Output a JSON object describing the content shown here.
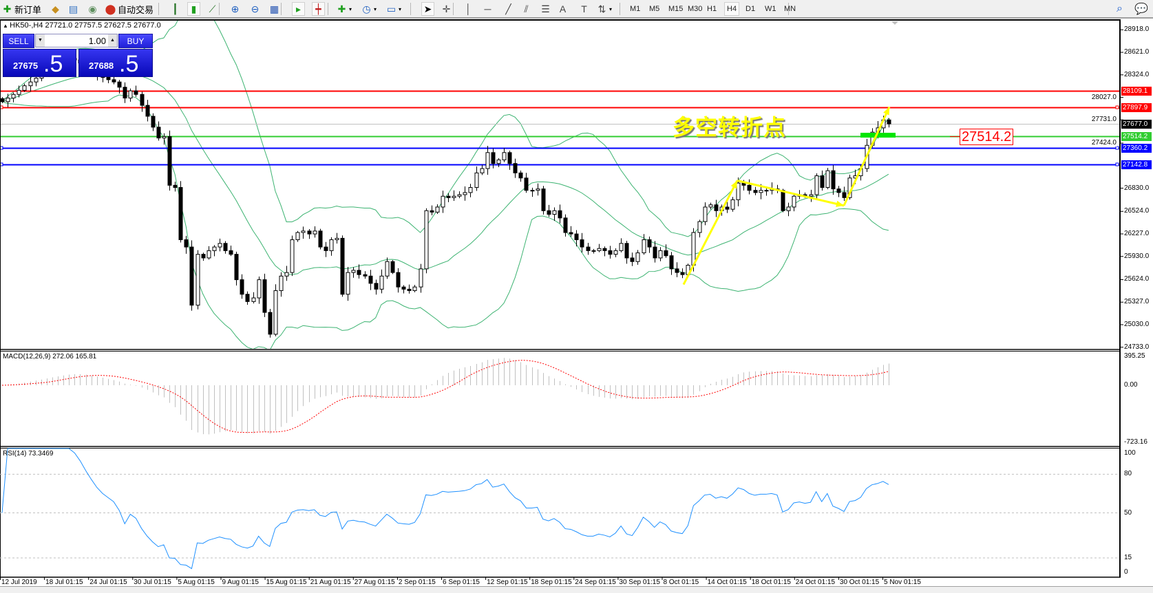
{
  "toolbar": {
    "items": [
      {
        "name": "new-order-button",
        "icon": "new-order-icon",
        "glyph": "✚",
        "label": "新订单",
        "color": "#1a9a1a"
      },
      {
        "name": "market-watch-button",
        "icon": "gold-bars-icon",
        "glyph": "◆",
        "label": "",
        "color": "#c89020"
      },
      {
        "name": "navigator-button",
        "icon": "navigator-icon",
        "glyph": "▤",
        "label": "",
        "color": "#3070c0"
      },
      {
        "name": "signals-button",
        "icon": "signal-icon",
        "glyph": "◉",
        "label": "",
        "color": "#609060"
      },
      {
        "name": "auto-trading-button",
        "icon": "auto-trading-icon",
        "glyph": "⬤",
        "label": "自动交易",
        "color": "#d03020"
      },
      {
        "name": "bar-chart-button",
        "icon": "bar-chart-icon",
        "glyph": "┃",
        "label": "",
        "color": "#207020"
      },
      {
        "name": "candlestick-button",
        "icon": "candlestick-icon",
        "glyph": "▮",
        "label": "",
        "color": "#20a020"
      },
      {
        "name": "line-chart-button",
        "icon": "line-chart-icon",
        "glyph": "⟋",
        "label": "",
        "color": "#207020"
      },
      {
        "name": "zoom-in-button",
        "icon": "zoom-in-icon",
        "glyph": "⊕",
        "label": "",
        "color": "#2060c0"
      },
      {
        "name": "zoom-out-button",
        "icon": "zoom-out-icon",
        "glyph": "⊖",
        "label": "",
        "color": "#2060c0"
      },
      {
        "name": "tile-windows-button",
        "icon": "tile-icon",
        "glyph": "▦",
        "label": "",
        "color": "#2050b0"
      },
      {
        "name": "auto-scroll-button",
        "icon": "auto-scroll-icon",
        "glyph": "▸",
        "label": "",
        "color": "#20a020"
      },
      {
        "name": "chart-shift-button",
        "icon": "chart-shift-icon",
        "glyph": "┿",
        "label": "",
        "color": "#c02020"
      },
      {
        "name": "indicators-button",
        "icon": "indicators-icon",
        "glyph": "✚",
        "label": "▾",
        "color": "#20a020"
      },
      {
        "name": "periods-button",
        "icon": "clock-icon",
        "glyph": "◷",
        "label": "▾",
        "color": "#2060c0"
      },
      {
        "name": "templates-button",
        "icon": "template-icon",
        "glyph": "▭",
        "label": "▾",
        "color": "#2060c0"
      },
      {
        "name": "cursor-button",
        "icon": "cursor-icon",
        "glyph": "➤",
        "label": "",
        "color": "#000"
      },
      {
        "name": "crosshair-button",
        "icon": "crosshair-icon",
        "glyph": "✛",
        "label": "",
        "color": "#444"
      },
      {
        "name": "vertical-line-button",
        "icon": "vertical-line-icon",
        "glyph": "│",
        "label": "",
        "color": "#444"
      },
      {
        "name": "horizontal-line-button",
        "icon": "horizontal-line-icon",
        "glyph": "─",
        "label": "",
        "color": "#444"
      },
      {
        "name": "trendline-button",
        "icon": "trendline-icon",
        "glyph": "╱",
        "label": "",
        "color": "#444"
      },
      {
        "name": "equidistant-channel-button",
        "icon": "channel-icon",
        "glyph": "⫽",
        "label": "",
        "color": "#444"
      },
      {
        "name": "fibonacci-button",
        "icon": "fibonacci-icon",
        "glyph": "☰",
        "label": "",
        "color": "#444"
      },
      {
        "name": "text-button",
        "icon": "text-icon",
        "glyph": "A",
        "label": "",
        "color": "#444"
      },
      {
        "name": "text-label-button",
        "icon": "text-label-icon",
        "glyph": "T",
        "label": "",
        "color": "#444"
      },
      {
        "name": "arrows-button",
        "icon": "arrows-icon",
        "glyph": "⇅",
        "label": "▾",
        "color": "#444"
      }
    ],
    "timeframes": [
      "M1",
      "M5",
      "M15",
      "M30",
      "H1",
      "H4",
      "D1",
      "W1",
      "MN"
    ],
    "active_timeframe": "H4",
    "search_icon": "search-icon",
    "chat_icon": "chat-icon"
  },
  "chart": {
    "symbol_line": "HK50-,H4  27721.0 27757.5 27627.5 27677.0",
    "trade_panel": {
      "sell_label": "SELL",
      "buy_label": "BUY",
      "lot": "1.00",
      "sell_price_main": "27675",
      "sell_price_frac": ".5",
      "buy_price_main": "27688",
      "buy_price_frac": ".5"
    },
    "annotation_text": "多空转折点",
    "annotation_label": "27514.2",
    "macd_title": "MACD(12,26,9) 272.06 165.81",
    "rsi_title": "RSI(14) 73.3469"
  },
  "chart_data": {
    "type": "candlestick",
    "symbol": "HK50-",
    "timeframe": "H4",
    "closes": [
      27970,
      28018,
      28066,
      28120,
      28180,
      28230,
      28280,
      28320,
      28380,
      28420,
      28460,
      28500,
      28540,
      28520,
      28480,
      28430,
      28380,
      28330,
      28290,
      28260,
      28230,
      28161,
      28018,
      28113,
      28066,
      27922,
      27778,
      27634,
      27491,
      27510,
      26868,
      26839,
      26150,
      26054,
      25287,
      25958,
      25910,
      26006,
      26054,
      26102,
      26006,
      25958,
      25623,
      25431,
      25335,
      25383,
      25623,
      25192,
      24904,
      25479,
      25671,
      25718,
      26150,
      26245,
      26265,
      26226,
      26265,
      26054,
      26006,
      26150,
      26169,
      25431,
      25718,
      25747,
      25690,
      25671,
      25575,
      25498,
      25671,
      25862,
      25718,
      25527,
      25498,
      25479,
      25527,
      25766,
      26533,
      26514,
      26581,
      26724,
      26705,
      26724,
      26744,
      26772,
      26839,
      27031,
      27088,
      27299,
      27155,
      27203,
      27299,
      27155,
      27031,
      26964,
      26801,
      26801,
      26820,
      26533,
      26485,
      26533,
      26437,
      26245,
      26226,
      26150,
      26054,
      26006,
      26006,
      26035,
      26006,
      25958,
      26006,
      26102,
      25910,
      25862,
      25977,
      26150,
      26054,
      25910,
      26006,
      25939,
      25766,
      25718,
      25690,
      25814,
      26245,
      26389,
      26581,
      26610,
      26533,
      26581,
      26552,
      26677,
      26897,
      26868,
      26801,
      26772,
      26801,
      26801,
      26820,
      26801,
      26533,
      26581,
      26724,
      26744,
      26724,
      26744,
      26993,
      26839,
      27060,
      26820,
      26772,
      26705,
      26964,
      26993,
      27088,
      27395,
      27568,
      27625,
      27730,
      27677
    ],
    "price_axis": [
      "28918.0",
      "28621.0",
      "28324.0",
      "28027.0",
      "27731.0",
      "27424.0",
      "26830.0",
      "26524.0",
      "26227.0",
      "25930.0",
      "25624.0",
      "25327.0",
      "25030.0",
      "24733.0"
    ],
    "price_lines": [
      {
        "value": "28109.1",
        "color": "#ff0000"
      },
      {
        "value": "27897.9",
        "color": "#ff0000"
      },
      {
        "value": "27677.0",
        "color": "#000000",
        "line": "#c0c0c0"
      },
      {
        "value": "27514.2",
        "color": "#32cd32"
      },
      {
        "value": "27360.2",
        "color": "#0000ff"
      },
      {
        "value": "27142.8",
        "color": "#0000ff"
      }
    ],
    "time_axis": [
      "12 Jul 2019",
      "18 Jul 01:15",
      "24 Jul 01:15",
      "30 Jul 01:15",
      "5 Aug 01:15",
      "9 Aug 01:15",
      "15 Aug 01:15",
      "21 Aug 01:15",
      "27 Aug 01:15",
      "2 Sep 01:15",
      "6 Sep 01:15",
      "12 Sep 01:15",
      "18 Sep 01:15",
      "24 Sep 01:15",
      "30 Sep 01:15",
      "8 Oct 01:15",
      "14 Oct 01:15",
      "18 Oct 01:15",
      "24 Oct 01:15",
      "30 Oct 01:15",
      "5 Nov 01:15"
    ],
    "indicators": {
      "bollinger": {
        "period": 20,
        "deviation": 2,
        "color": "#3cb371"
      },
      "macd": {
        "fast": 12,
        "slow": 26,
        "signal": 9,
        "axis": [
          "395.25",
          "0.00",
          "-723.16"
        ],
        "hist_color": "#c0c0c0",
        "signal_color": "#ff0000"
      },
      "rsi": {
        "period": 14,
        "axis": [
          "100",
          "80",
          "50",
          "15",
          "0"
        ],
        "levels": [
          80,
          50,
          15
        ],
        "color": "#1e90ff"
      }
    },
    "drawn_path_prices": [
      25560,
      26930,
      26600,
      27900
    ],
    "colors": {
      "bull_body": "#ffffff",
      "bear_body": "#000000",
      "arrow": "#ffff00",
      "zone": "#00e600"
    }
  }
}
